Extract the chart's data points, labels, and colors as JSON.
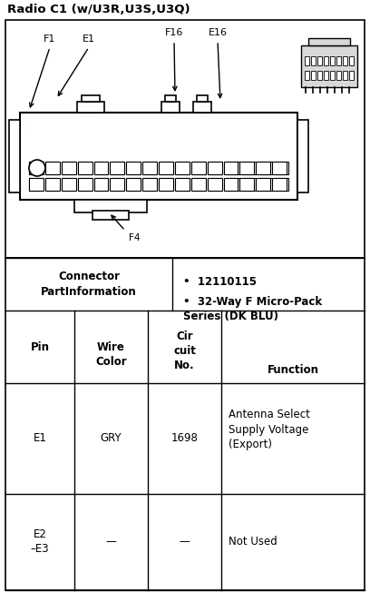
{
  "title": "Radio C1 (w/U3R,U3S,U3Q)",
  "bg_color": "#ffffff",
  "line_color": "#000000",
  "text_color": "#000000",
  "connector_label_line1": "Connector",
  "connector_label_line2": "PartInformation",
  "bullet1": "12110115",
  "bullet2": "32-Way F Micro-Pack\nSeries (DK BLU)",
  "col_headers": [
    "Pin",
    "Wire\nColor",
    "Cir\ncuit\nNo.",
    "Function"
  ],
  "row1": [
    "E1",
    "GRY",
    "1698",
    "Antenna Select\nSupply Voltage\n(Export)"
  ],
  "row2_pin": "E2\n–E3",
  "row2_wire": "—",
  "row2_circuit": "—",
  "row2_function": "Not Used",
  "pin_labels": [
    "F1",
    "E1",
    "F16",
    "E16"
  ],
  "pin_label_f4": "F4",
  "fig_w": 4.08,
  "fig_h": 6.52,
  "dpi": 100
}
